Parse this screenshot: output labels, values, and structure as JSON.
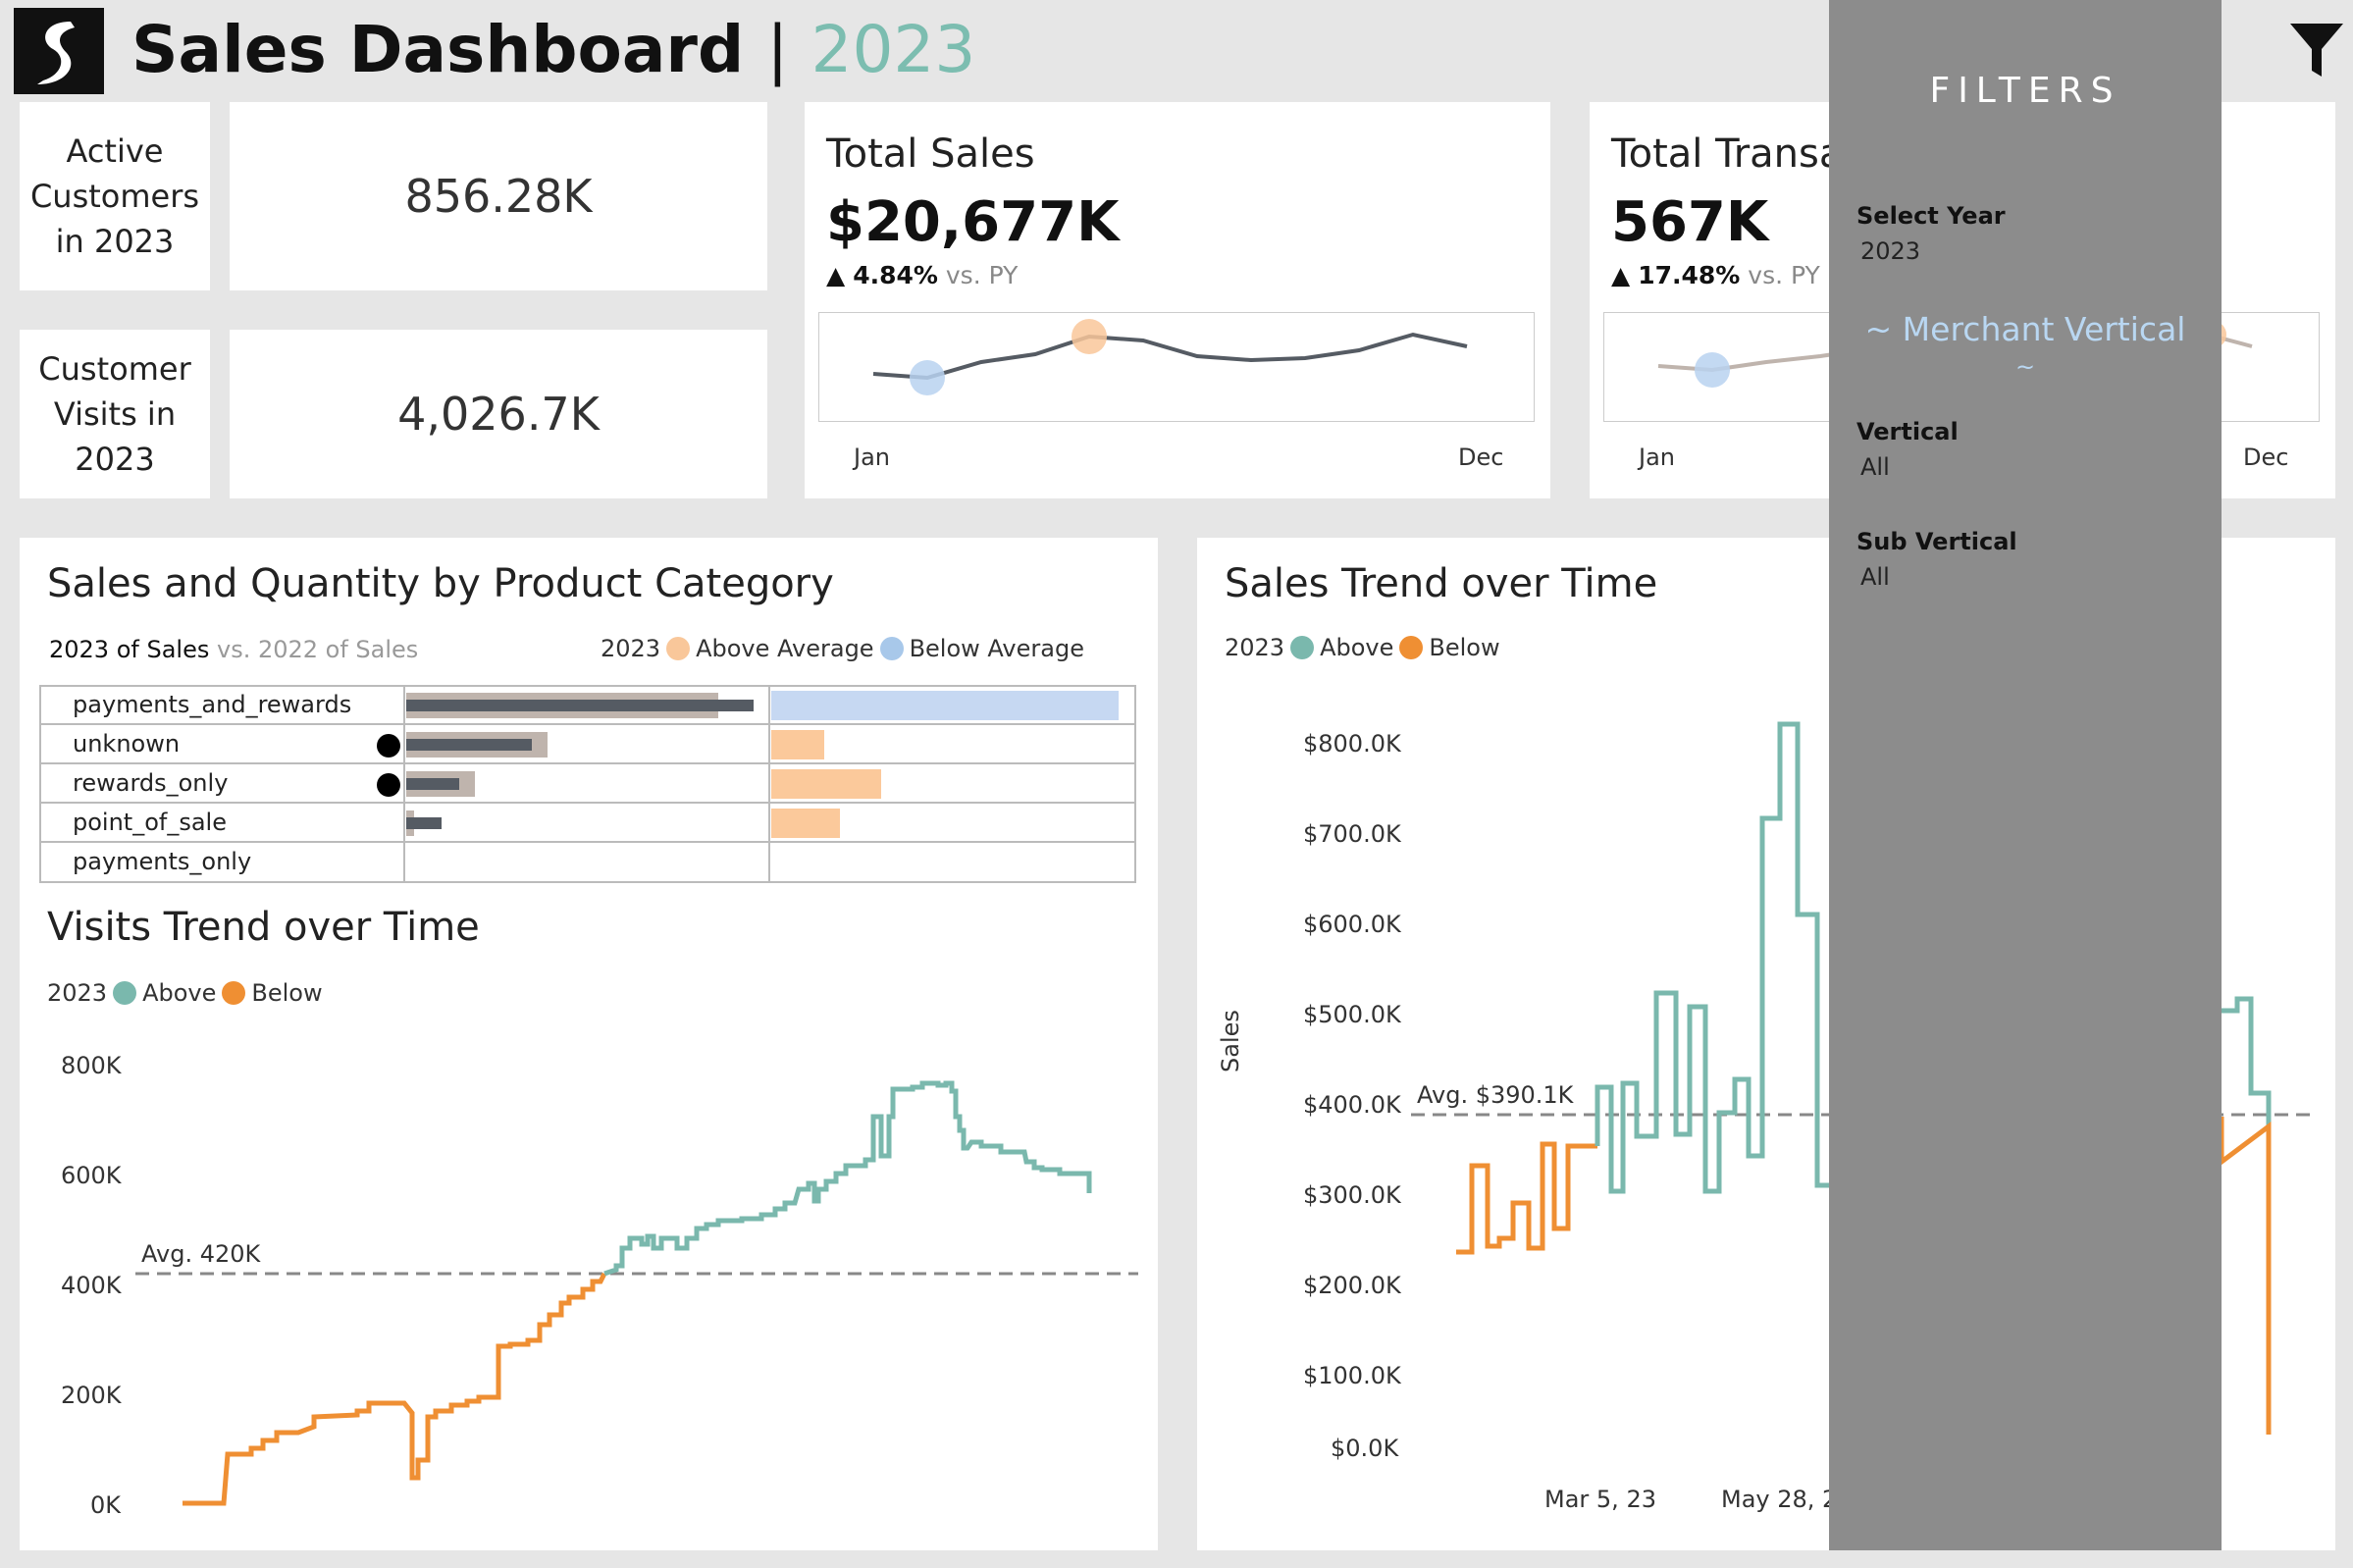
{
  "header": {
    "title": "Sales Dashboard",
    "separator": "|",
    "year": "2023",
    "filter_icon": "filter-icon",
    "logo_icon": "logo-icon"
  },
  "kpis": {
    "active_customers": {
      "label_lines": [
        "Active",
        "Customers",
        "in 2023"
      ],
      "value": "856.28K"
    },
    "customer_visits": {
      "label_lines": [
        "Customer",
        "Visits in",
        "2023"
      ],
      "value": "4,026.7K"
    }
  },
  "total_sales": {
    "title": "Total Sales",
    "value": "$20,677K",
    "delta_arrow": "▲",
    "delta_pct": "4.84%",
    "delta_suffix": "vs. PY",
    "x_start": "Jan",
    "x_end": "Dec"
  },
  "total_transactions": {
    "title": "Total Transa",
    "value": "567K",
    "delta_arrow": "▲",
    "delta_pct": "17.48%",
    "delta_suffix": "vs. PY",
    "x_start": "Jan",
    "x_end": "Dec"
  },
  "category_panel": {
    "title": "Sales and Quantity by Product Category",
    "legend_left_main": "2023 of Sales",
    "legend_left_sub": "vs. 2022 of Sales",
    "legend_year": "2023",
    "legend_above": "Above Average",
    "legend_below": "Below  Average",
    "rows": [
      {
        "label": "payments_and_rewards",
        "flag": false
      },
      {
        "label": "unknown",
        "flag": true
      },
      {
        "label": "rewards_only",
        "flag": true
      },
      {
        "label": "point_of_sale",
        "flag": false
      },
      {
        "label": "payments_only",
        "flag": false
      }
    ]
  },
  "visits_panel": {
    "title": "Visits Trend over Time",
    "legend_year": "2023",
    "legend_above": "Above",
    "legend_below": "Below",
    "y_ticks": [
      "800K",
      "600K",
      "400K",
      "200K",
      "0K"
    ],
    "avg_label": "Avg. 420K"
  },
  "sales_trend_panel": {
    "title": "Sales Trend over Time",
    "legend_year": "2023",
    "legend_above": "Above",
    "legend_below": "Below",
    "y_axis_title": "Sales",
    "y_ticks": [
      "$800.0K",
      "$700.0K",
      "$600.0K",
      "$500.0K",
      "$400.0K",
      "$300.0K",
      "$200.0K",
      "$100.0K",
      "$0.0K"
    ],
    "avg_label": "Avg. $390.1K",
    "x_ticks": [
      "Mar 5, 23",
      "May 28, 2"
    ]
  },
  "filters": {
    "header": "FILTERS",
    "select_year_label": "Select Year",
    "select_year_value": "2023",
    "merchant_link_line1": "~ Merchant  Vertical",
    "merchant_link_line2": "~",
    "vertical_label": "Vertical",
    "vertical_value": "All",
    "sub_vertical_label": "Sub Vertical",
    "sub_vertical_value": "All"
  },
  "colors": {
    "above": "#7ab8ad",
    "below": "#ef8f33",
    "above_avg_light": "#f9c79a",
    "below_avg_light": "#a8c8ea",
    "year_accent": "#7cbdb0"
  }
}
